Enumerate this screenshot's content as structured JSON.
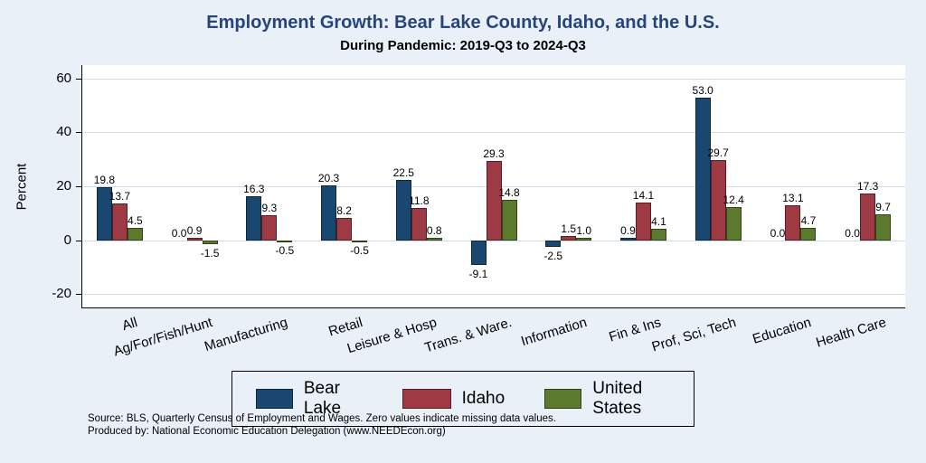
{
  "title": "Employment Growth: Bear Lake County, Idaho, and the U.S.",
  "subtitle": "During Pandemic: 2019-Q3 to 2024-Q3",
  "ylabel": "Percent",
  "notes": {
    "line1": "Source: BLS, Quarterly Census of Employment and Wages. Zero values indicate missing data values.",
    "line2": "Produced by: National Economic Education Delegation (www.NEEDEcon.org)"
  },
  "colors": {
    "background": "#e9f0f7",
    "plot_background": "#ffffff",
    "title": "#26457f",
    "gridline": "#ccdcea",
    "bear_lake": "#1a476f",
    "idaho": "#9d3a44",
    "united_states": "#5b7a2d"
  },
  "chart_data": {
    "type": "bar",
    "title": "Employment Growth: Bear Lake County, Idaho, and the U.S.",
    "subtitle": "During Pandemic: 2019-Q3 to 2024-Q3",
    "ylabel": "Percent",
    "xlabel": "",
    "grid": true,
    "legend_position": "bottom",
    "ylim": [
      -25,
      65
    ],
    "yticks": [
      -20,
      0,
      20,
      40,
      60
    ],
    "categories": [
      "All",
      "Ag/For/Fish/Hunt",
      "Manufacturing",
      "Retail",
      "Leisure & Hosp",
      "Trans. & Ware.",
      "Information",
      "Fin & Ins",
      "Prof, Sci, Tech",
      "Education",
      "Health Care"
    ],
    "series": [
      {
        "name": "Bear Lake",
        "color": "#1a476f",
        "values": [
          19.8,
          0.0,
          16.3,
          20.3,
          22.5,
          -9.1,
          -2.5,
          0.9,
          53.0,
          0.0,
          0.0
        ]
      },
      {
        "name": "Idaho",
        "color": "#9d3a44",
        "values": [
          13.7,
          0.9,
          9.3,
          8.2,
          11.8,
          29.3,
          1.5,
          14.1,
          29.7,
          13.1,
          17.3
        ]
      },
      {
        "name": "United States",
        "color": "#5b7a2d",
        "values": [
          4.5,
          -1.5,
          -0.5,
          -0.5,
          0.8,
          14.8,
          1.0,
          4.1,
          12.4,
          4.7,
          9.7
        ]
      }
    ]
  }
}
